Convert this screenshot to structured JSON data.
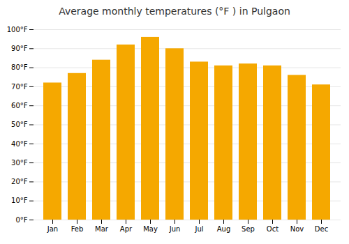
{
  "chart_data": {
    "type": "bar",
    "title": "Average monthly temperatures (°F ) in Pulgaon",
    "categories": [
      "Jan",
      "Feb",
      "Mar",
      "Apr",
      "May",
      "Jun",
      "Jul",
      "Aug",
      "Sep",
      "Oct",
      "Nov",
      "Dec"
    ],
    "values": [
      72,
      77,
      84,
      92,
      96,
      90,
      83,
      81,
      82,
      81,
      76,
      71
    ],
    "color": "#F5A800",
    "ylim": [
      0,
      100
    ],
    "yticks": [
      {
        "value": 0,
        "label": "0°F"
      },
      {
        "value": 10,
        "label": "10°F"
      },
      {
        "value": 20,
        "label": "20°F"
      },
      {
        "value": 30,
        "label": "30°F"
      },
      {
        "value": 40,
        "label": "40°F"
      },
      {
        "value": 50,
        "label": "50°F"
      },
      {
        "value": 60,
        "label": "60°F"
      },
      {
        "value": 70,
        "label": "70°F"
      },
      {
        "value": 80,
        "label": "80°F"
      },
      {
        "value": 90,
        "label": "90°F"
      },
      {
        "value": 100,
        "label": "100°F"
      }
    ],
    "grid": true
  }
}
